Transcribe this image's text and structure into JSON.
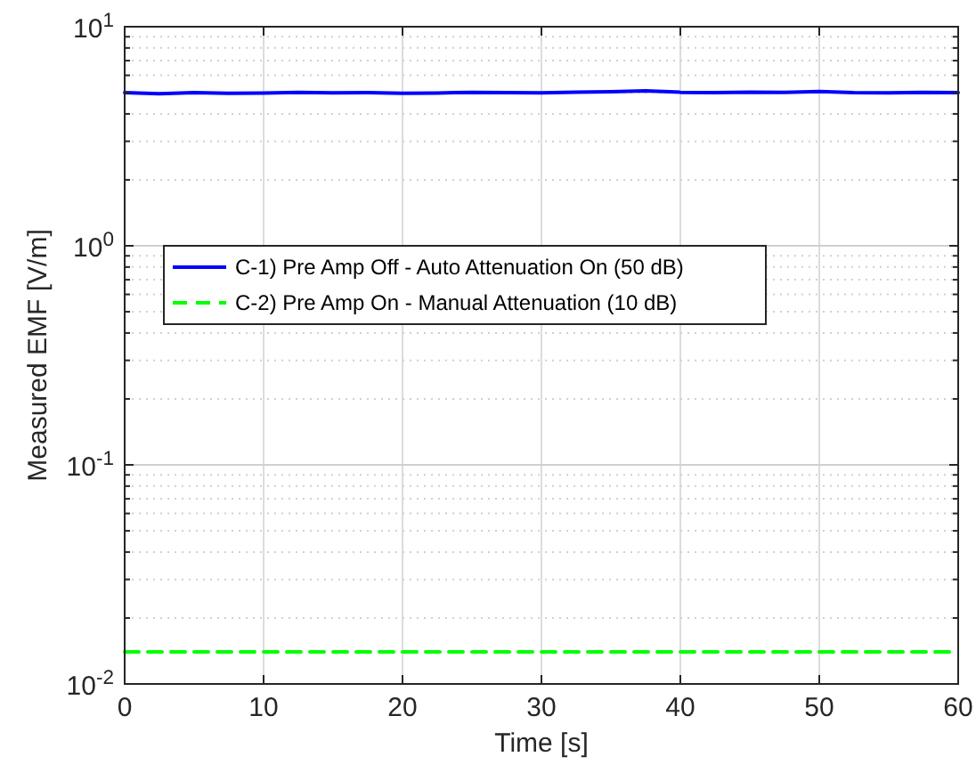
{
  "chart_data": {
    "type": "line",
    "xlabel": "Time [s]",
    "ylabel": "Measured EMF [V/m]",
    "xlim": [
      0,
      60
    ],
    "xticks": [
      0,
      10,
      20,
      30,
      40,
      50,
      60
    ],
    "ylim": [
      0.01,
      10
    ],
    "log": "y",
    "yticks": [
      {
        "value": 0.01,
        "label": "10$^{-2}$"
      },
      {
        "value": 0.02,
        "label": null
      },
      {
        "value": 0.03,
        "label": null
      },
      {
        "value": 0.04,
        "label": null
      },
      {
        "value": 0.05,
        "label": null
      },
      {
        "value": 0.06,
        "label": null
      },
      {
        "value": 0.07,
        "label": null
      },
      {
        "value": 0.08,
        "label": null
      },
      {
        "value": 0.09,
        "label": null
      },
      {
        "value": 0.1,
        "label": "10$^{-1}$"
      },
      {
        "value": 0.2,
        "label": null
      },
      {
        "value": 0.3,
        "label": null
      },
      {
        "value": 0.4,
        "label": null
      },
      {
        "value": 0.5,
        "label": null
      },
      {
        "value": 0.6,
        "label": null
      },
      {
        "value": 0.7,
        "label": null
      },
      {
        "value": 0.8,
        "label": null
      },
      {
        "value": 0.9,
        "label": null
      },
      {
        "value": 1,
        "label": "10$^{0}$"
      },
      {
        "value": 2,
        "label": null
      },
      {
        "value": 3,
        "label": null
      },
      {
        "value": 4,
        "label": null
      },
      {
        "value": 5,
        "label": null
      },
      {
        "value": 6,
        "label": null
      },
      {
        "value": 7,
        "label": null
      },
      {
        "value": 8,
        "label": null
      },
      {
        "value": 9,
        "label": null
      },
      {
        "value": 10,
        "label": "10$^{1}$"
      }
    ],
    "grid": true,
    "legend": "left",
    "series": [
      {
        "name": "C-1) Pre Amp Off - Auto Attenuation On (50 dB)",
        "color": "#0000ff",
        "line_style": "solid",
        "x": [
          0,
          2.5,
          5,
          7.5,
          10,
          12.5,
          15,
          17.5,
          20,
          22.5,
          25,
          27.5,
          30,
          32.5,
          35,
          37.5,
          40,
          42.5,
          45,
          47.5,
          50,
          52.5,
          55,
          57.5,
          60
        ],
        "values": [
          5.0,
          4.95,
          5.0,
          4.97,
          4.98,
          5.02,
          4.99,
          5.0,
          4.97,
          4.98,
          5.02,
          5.0,
          4.99,
          5.03,
          5.05,
          5.1,
          5.02,
          5.0,
          5.03,
          5.01,
          5.06,
          5.0,
          4.99,
          5.02,
          5.0
        ]
      },
      {
        "name": "C-2) Pre Amp On - Manual Attenuation (10 dB)",
        "color": "#00ff00",
        "line_style": "dashed",
        "x": [
          0,
          60
        ],
        "values": [
          0.014,
          0.014
        ]
      }
    ]
  }
}
